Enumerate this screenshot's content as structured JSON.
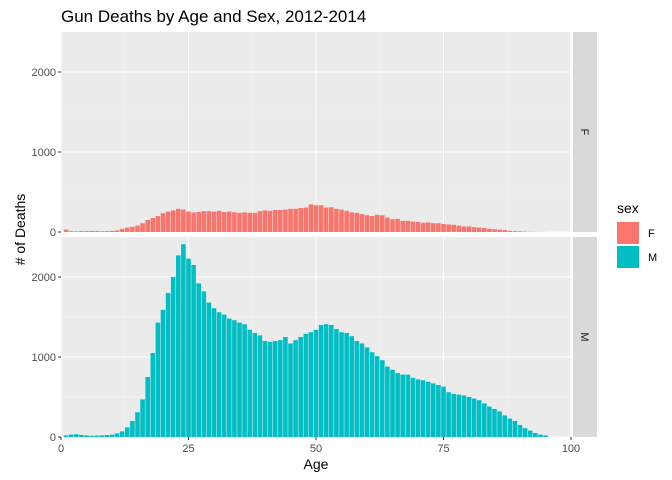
{
  "chart_data": {
    "type": "bar",
    "title": "Gun Deaths by Age and Sex, 2012-2014",
    "xlabel": "Age",
    "ylabel": "# of Deaths",
    "xlim": [
      0,
      100
    ],
    "ylim": [
      0,
      2500
    ],
    "x_ticks": [
      0,
      25,
      50,
      75,
      100
    ],
    "y_ticks": [
      0,
      1000,
      2000
    ],
    "grid": true,
    "facet_by": "sex",
    "legend": {
      "title": "sex",
      "position": "right",
      "entries": [
        {
          "label": "F",
          "color": "#F8766D"
        },
        {
          "label": "M",
          "color": "#00BFC4"
        }
      ]
    },
    "panels": [
      {
        "name": "F",
        "color": "#F8766D",
        "start_age": 1,
        "values": [
          30,
          10,
          8,
          12,
          12,
          14,
          12,
          10,
          12,
          14,
          20,
          40,
          55,
          65,
          80,
          110,
          150,
          175,
          200,
          235,
          255,
          270,
          290,
          280,
          255,
          245,
          250,
          260,
          260,
          255,
          265,
          250,
          255,
          245,
          240,
          245,
          240,
          240,
          260,
          270,
          265,
          275,
          275,
          280,
          290,
          290,
          300,
          305,
          345,
          335,
          335,
          305,
          310,
          290,
          280,
          265,
          245,
          240,
          225,
          210,
          200,
          215,
          210,
          180,
          160,
          165,
          140,
          140,
          130,
          125,
          115,
          120,
          110,
          110,
          100,
          95,
          90,
          80,
          70,
          70,
          60,
          55,
          50,
          40,
          35,
          30,
          25,
          15,
          10,
          8,
          5,
          3,
          2,
          2,
          1
        ]
      },
      {
        "name": "M",
        "color": "#00BFC4",
        "start_age": 1,
        "values": [
          20,
          30,
          35,
          25,
          20,
          15,
          18,
          20,
          25,
          30,
          45,
          70,
          120,
          200,
          310,
          470,
          750,
          1050,
          1430,
          1590,
          1800,
          2000,
          2270,
          2410,
          2230,
          2150,
          1920,
          1820,
          1680,
          1610,
          1560,
          1530,
          1480,
          1460,
          1430,
          1410,
          1340,
          1300,
          1270,
          1200,
          1190,
          1200,
          1210,
          1250,
          1170,
          1210,
          1250,
          1290,
          1310,
          1340,
          1400,
          1410,
          1400,
          1350,
          1310,
          1300,
          1260,
          1200,
          1170,
          1120,
          1060,
          1010,
          960,
          880,
          840,
          800,
          780,
          780,
          740,
          720,
          710,
          690,
          670,
          650,
          630,
          560,
          540,
          530,
          520,
          500,
          480,
          460,
          420,
          380,
          350,
          320,
          270,
          230,
          200,
          150,
          110,
          80,
          50,
          30,
          20
        ]
      }
    ]
  }
}
